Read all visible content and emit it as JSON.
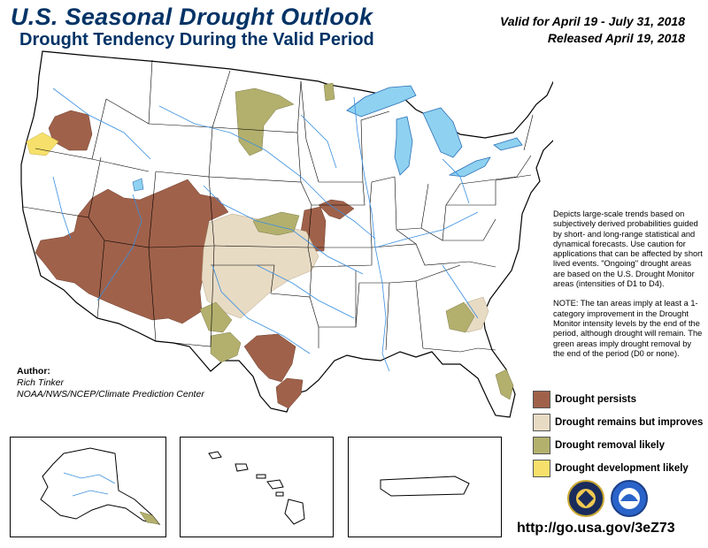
{
  "header": {
    "title": "U.S. Seasonal Drought Outlook",
    "subtitle": "Drought Tendency During the Valid Period",
    "valid": "Valid for April 19 - July 31, 2018",
    "released": "Released April 19, 2018"
  },
  "description": {
    "para1": "Depicts large-scale trends based on subjectively derived probabilities guided by short- and long-range statistical and dynamical forecasts. Use caution for applications that can be affected by short lived events. \"Ongoing\" drought areas are based on the U.S. Drought Monitor areas (intensities of D1 to D4).",
    "para2": "NOTE: The tan areas imply at least a 1-category improvement in the Drought Monitor intensity levels by the end of the period, although drought will remain. The green areas imply drought removal by the end of the period (D0 or none)."
  },
  "author": {
    "label": "Author:",
    "name": "Rich Tinker",
    "org": "NOAA/NWS/NCEP/Climate Prediction Center"
  },
  "legend": [
    {
      "label": "Drought persists",
      "color": "#a0614a"
    },
    {
      "label": "Drought remains but improves",
      "color": "#e8dbc4"
    },
    {
      "label": "Drought removal likely",
      "color": "#b3b06e"
    },
    {
      "label": "Drought development likely",
      "color": "#f6e06b"
    }
  ],
  "colors": {
    "water": "#8ed1f0",
    "rivers": "#3a8fe0",
    "title": "#003366"
  },
  "logos": [
    "noaa-seal",
    "nws-seal"
  ],
  "url": "http://go.usa.gov/3eZ73"
}
